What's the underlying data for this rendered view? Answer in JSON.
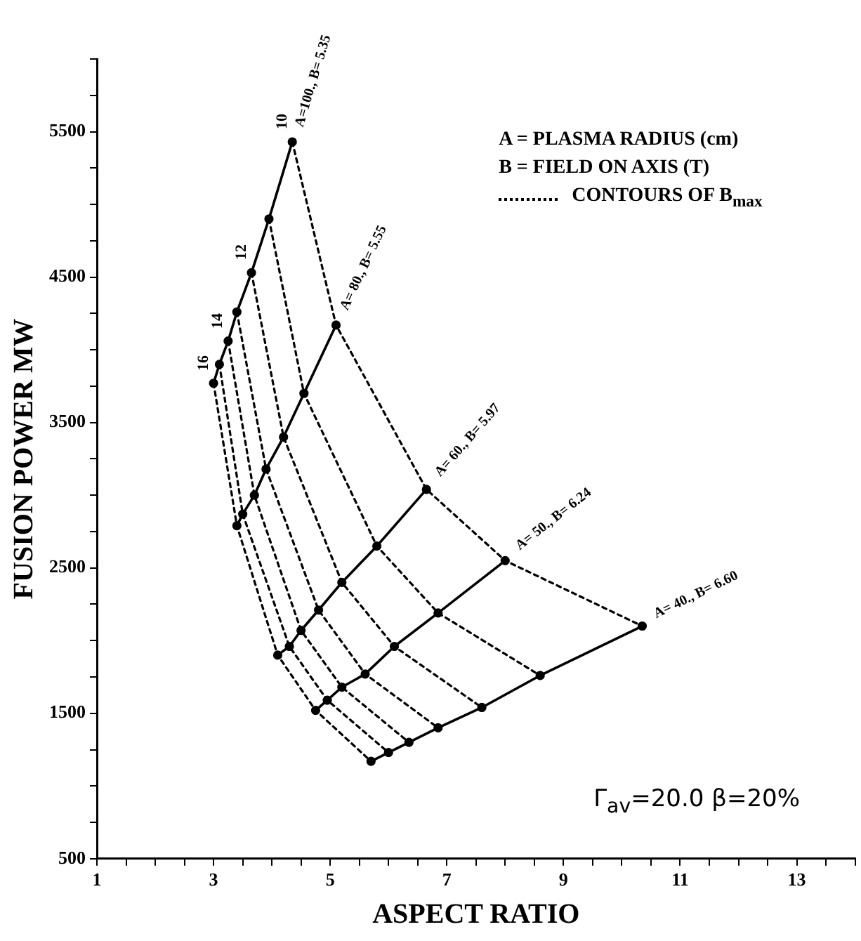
{
  "chart_data": {
    "type": "line",
    "xlabel": "ASPECT RATIO",
    "ylabel": "FUSION POWER MW",
    "xlim": [
      1,
      14
    ],
    "ylim": [
      500,
      6000
    ],
    "xticks": [
      1,
      {
        "value": 1.5,
        "label": null
      },
      {
        "value": 2,
        "label": null
      },
      {
        "value": 2.5,
        "label": null
      },
      3,
      {
        "value": 3.5,
        "label": null
      },
      {
        "value": 4,
        "label": null
      },
      {
        "value": 4.5,
        "label": null
      },
      5,
      {
        "value": 5.5,
        "label": null
      },
      {
        "value": 6,
        "label": null
      },
      {
        "value": 6.5,
        "label": null
      },
      7,
      {
        "value": 7.5,
        "label": null
      },
      {
        "value": 8,
        "label": null
      },
      {
        "value": 8.5,
        "label": null
      },
      9,
      {
        "value": 9.5,
        "label": null
      },
      {
        "value": 10,
        "label": null
      },
      {
        "value": 10.5,
        "label": null
      },
      11,
      {
        "value": 11.5,
        "label": null
      },
      {
        "value": 12,
        "label": null
      },
      {
        "value": 12.5,
        "label": null
      },
      13,
      {
        "value": 13.5,
        "label": null
      },
      {
        "value": 14,
        "label": null
      }
    ],
    "yticks": [
      500,
      {
        "value": 750,
        "label": null
      },
      {
        "value": 1000,
        "label": null
      },
      {
        "value": 1250,
        "label": null
      },
      1500,
      {
        "value": 1750,
        "label": null
      },
      {
        "value": 2000,
        "label": null
      },
      {
        "value": 2250,
        "label": null
      },
      2500,
      {
        "value": 2750,
        "label": null
      },
      {
        "value": 3000,
        "label": null
      },
      {
        "value": 3250,
        "label": null
      },
      3500,
      {
        "value": 3750,
        "label": null
      },
      {
        "value": 4000,
        "label": null
      },
      {
        "value": 4250,
        "label": null
      },
      4500,
      {
        "value": 4750,
        "label": null
      },
      {
        "value": 5000,
        "label": null
      },
      {
        "value": 5250,
        "label": null
      },
      5500,
      {
        "value": 5750,
        "label": null
      },
      {
        "value": 6000,
        "label": null
      }
    ],
    "grid": false,
    "legend": "top right",
    "series": [
      {
        "name": "A=100., B= 5.35",
        "color": "#000000",
        "marker": "circle",
        "line_style": "solid",
        "x": [
          4.35,
          3.95,
          3.65,
          3.4,
          3.25,
          3.1,
          3.0
        ],
        "values": [
          5430,
          4900,
          4530,
          4260,
          4060,
          3900,
          3770
        ]
      },
      {
        "name": "A= 80., B= 5.55",
        "color": "#000000",
        "marker": "circle",
        "line_style": "solid",
        "x": [
          5.1,
          4.55,
          4.2,
          3.9,
          3.7,
          3.5,
          3.4
        ],
        "values": [
          4170,
          3700,
          3400,
          3180,
          3000,
          2870,
          2790
        ]
      },
      {
        "name": "A= 60., B= 5.97",
        "color": "#000000",
        "marker": "circle",
        "line_style": "solid",
        "x": [
          6.65,
          5.8,
          5.2,
          4.8,
          4.5,
          4.3,
          4.1
        ],
        "values": [
          3040,
          2650,
          2400,
          2210,
          2070,
          1960,
          1900
        ]
      },
      {
        "name": "A= 50., B= 6.24",
        "color": "#000000",
        "marker": "circle",
        "line_style": "solid",
        "x": [
          8.0,
          6.85,
          6.1,
          5.6,
          5.2,
          4.95,
          4.75
        ],
        "values": [
          2550,
          2190,
          1960,
          1770,
          1680,
          1590,
          1520
        ]
      },
      {
        "name": "A= 40., B= 6.60",
        "color": "#000000",
        "marker": "circle",
        "line_style": "solid",
        "x": [
          10.35,
          8.6,
          7.6,
          6.85,
          6.35,
          6.0,
          5.7
        ],
        "values": [
          2100,
          1760,
          1540,
          1400,
          1300,
          1230,
          1170
        ]
      },
      {
        "name": "CONTOURS OF B$_{max}$",
        "color": "#000000",
        "marker": "none",
        "line_style": "dotted",
        "x": [
          4.35,
          5.1,
          6.65,
          8.0,
          10.35
        ],
        "values": [
          5430,
          4170,
          3040,
          2550,
          2100
        ]
      },
      {
        "color": "#000000",
        "marker": "none",
        "line_style": "dotted",
        "x": [
          3.95,
          4.55,
          5.8,
          6.85,
          8.6
        ],
        "values": [
          4900,
          3700,
          2650,
          2190,
          1760
        ]
      },
      {
        "color": "#000000",
        "marker": "none",
        "line_style": "dotted",
        "x": [
          3.65,
          4.2,
          5.2,
          6.1,
          7.6
        ],
        "values": [
          4530,
          3400,
          2400,
          1960,
          1540
        ]
      },
      {
        "color": "#000000",
        "marker": "none",
        "line_style": "dotted",
        "x": [
          3.4,
          3.9,
          4.8,
          5.6,
          6.85
        ],
        "values": [
          4260,
          3180,
          2210,
          1770,
          1400
        ]
      },
      {
        "color": "#000000",
        "marker": "none",
        "line_style": "dotted",
        "x": [
          3.25,
          3.7,
          4.5,
          5.2,
          6.35
        ],
        "values": [
          4060,
          3000,
          2070,
          1680,
          1300
        ]
      },
      {
        "color": "#000000",
        "marker": "none",
        "line_style": "dotted",
        "x": [
          3.1,
          3.5,
          4.3,
          4.95,
          6.0
        ],
        "values": [
          3900,
          2870,
          1960,
          1590,
          1230
        ]
      },
      {
        "color": "#000000",
        "marker": "none",
        "line_style": "dotted",
        "x": [
          3.0,
          3.4,
          4.1,
          4.75,
          5.7
        ],
        "values": [
          3770,
          2790,
          1900,
          1520,
          1170
        ]
      }
    ],
    "annotations": [
      "A = PLASMA RADIUS (cm)",
      "B = FIELD ON AXIS (T)",
      {
        "text": "10",
        "x": 4.35,
        "y": 5430
      },
      {
        "text": "12",
        "x": 3.65,
        "y": 4530
      },
      {
        "text": "14",
        "x": 3.25,
        "y": 4060
      },
      {
        "text": "16",
        "x": 3.0,
        "y": 3770
      },
      "Γ$_{av}$=20.0    β=20%"
    ]
  }
}
